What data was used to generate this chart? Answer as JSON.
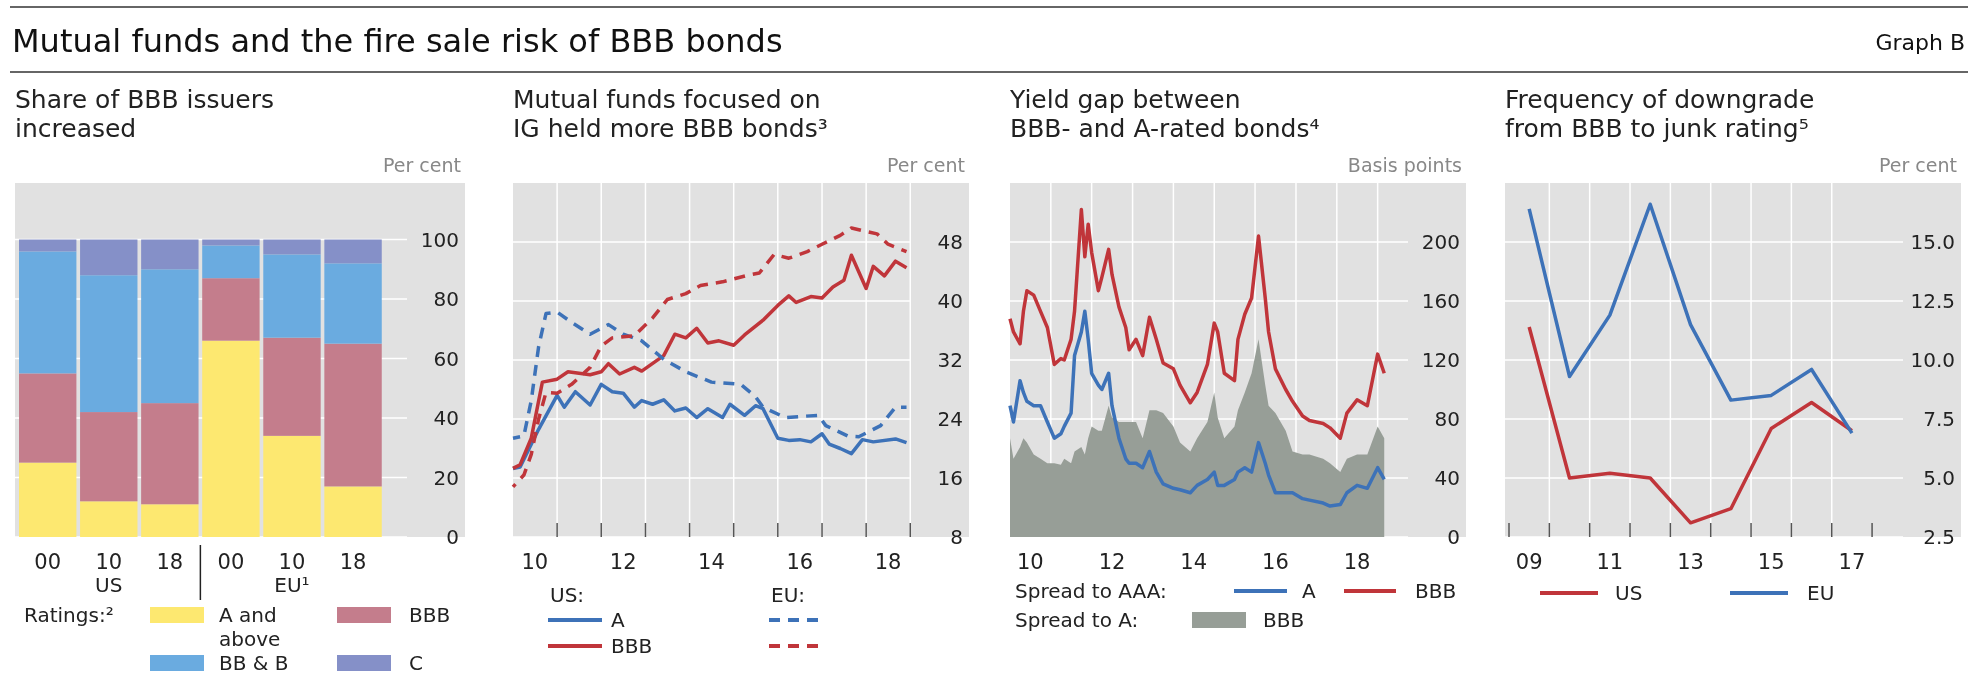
{
  "chart_data": [
    {
      "type": "other",
      "title": "Mutual funds and the fire sale risk of BBB bonds",
      "annotations": [
        "Graph B"
      ]
    },
    {
      "type": "bar",
      "title": "Share of BBB issuers\nincreased",
      "ylabel": "Per cent",
      "categories": [
        "00",
        "10",
        "18",
        "00",
        "10",
        "18"
      ],
      "annotations": [
        "US",
        "EU¹"
      ],
      "stacked": true,
      "ylim": [
        0,
        119
      ],
      "yticks": [
        0,
        20,
        40,
        60,
        80,
        100
      ],
      "grid": "y",
      "legend": "bottom",
      "legend_title": "Ratings:²",
      "series": [
        {
          "name": "A and\nabove",
          "color": "#fde870",
          "values": [
            25,
            12,
            11,
            66,
            34,
            17
          ]
        },
        {
          "name": "BBB",
          "color": "#c47d8c",
          "values": [
            30,
            30,
            34,
            21,
            33,
            48
          ]
        },
        {
          "name": "BB & B",
          "color": "#6aabe0",
          "values": [
            41,
            46,
            45,
            11,
            28,
            27
          ]
        },
        {
          "name": "C",
          "color": "#8590c8",
          "values": [
            4,
            12,
            10,
            2,
            5,
            8
          ]
        }
      ]
    },
    {
      "type": "line",
      "title": "Mutual funds focused on\nIG held more BBB bonds³",
      "ylabel": "Per cent",
      "xlim": [
        "2010-01",
        "2020-05"
      ],
      "xticks": [
        {
          "value": "2010-07",
          "label": "10"
        },
        {
          "value": "2011-01",
          "label": null
        },
        {
          "value": "2012-01",
          "label": null
        },
        {
          "value": "2012-07",
          "label": "12"
        },
        {
          "value": "2013-01",
          "label": null
        },
        {
          "value": "2014-01",
          "label": null
        },
        {
          "value": "2014-07",
          "label": "14"
        },
        {
          "value": "2015-01",
          "label": null
        },
        {
          "value": "2016-01",
          "label": null
        },
        {
          "value": "2016-07",
          "label": "16"
        },
        {
          "value": "2017-01",
          "label": null
        },
        {
          "value": "2018-01",
          "label": null
        },
        {
          "value": "2018-07",
          "label": "18"
        },
        {
          "value": "2019-01",
          "label": null
        }
      ],
      "ylim": [
        8,
        56
      ],
      "yticks": [
        8,
        16,
        24,
        32,
        40,
        48
      ],
      "grid": true,
      "legend": "bottom",
      "annotations": [
        "US:",
        "EU:"
      ],
      "series": [
        {
          "name": "A",
          "color": "#3d72b8",
          "line_style": "solid",
          "x": [
            "2010-01",
            "2010-03",
            "2010-08",
            "2011-01",
            "2011-03",
            "2011-06",
            "2011-10",
            "2012-01",
            "2012-04",
            "2012-07",
            "2012-10",
            "2012-12",
            "2013-03",
            "2013-06",
            "2013-09",
            "2013-12",
            "2014-03",
            "2014-06",
            "2014-10",
            "2014-12",
            "2015-04",
            "2015-07",
            "2015-09",
            "2016-01",
            "2016-04",
            "2016-07",
            "2016-10",
            "2017-01",
            "2017-03",
            "2017-06",
            "2017-09",
            "2017-12",
            "2018-03",
            "2018-09",
            "2018-12"
          ],
          "values": [
            17.3,
            17.5,
            22.6,
            27.2,
            25.6,
            27.7,
            25.9,
            28.7,
            27.7,
            27.5,
            25.6,
            26.5,
            26,
            26.6,
            25.1,
            25.5,
            24.2,
            25.4,
            24.2,
            26,
            24.5,
            25.8,
            25.4,
            21.4,
            21.1,
            21.2,
            20.9,
            22,
            20.6,
            20,
            19.3,
            21.2,
            20.9,
            21.3,
            20.8
          ]
        },
        {
          "name": "BBB",
          "color": "#c0353a",
          "line_style": "solid",
          "x": [
            "2010-01",
            "2010-03",
            "2010-06",
            "2010-09",
            "2011-01",
            "2011-04",
            "2011-10",
            "2012-01",
            "2012-03",
            "2012-06",
            "2012-10",
            "2012-12",
            "2013-06",
            "2013-09",
            "2013-12",
            "2014-03",
            "2014-06",
            "2014-09",
            "2015-01",
            "2015-04",
            "2015-09",
            "2016-01",
            "2016-04",
            "2016-06",
            "2016-10",
            "2017-01",
            "2017-04",
            "2017-07",
            "2017-09",
            "2018-01",
            "2018-03",
            "2018-06",
            "2018-09",
            "2018-12"
          ],
          "values": [
            17.3,
            17.8,
            21.4,
            29.0,
            29.4,
            30.4,
            30.0,
            30.4,
            31.5,
            30.1,
            31.0,
            30.5,
            32.6,
            35.5,
            35.0,
            36.3,
            34.3,
            34.6,
            34.0,
            35.4,
            37.4,
            39.4,
            40.7,
            39.8,
            40.6,
            40.4,
            41.9,
            42.8,
            46.2,
            41.7,
            44.7,
            43.4,
            45.4,
            44.5
          ]
        },
        {
          "color": "#3d72b8",
          "line_style": "dashed",
          "x": [
            "2010-01",
            "2010-04",
            "2010-06",
            "2010-08",
            "2010-10",
            "2011-01",
            "2011-05",
            "2011-10",
            "2012-03",
            "2012-07",
            "2012-12",
            "2013-06",
            "2013-12",
            "2014-07",
            "2015-03",
            "2015-07",
            "2015-09",
            "2016-03",
            "2016-12",
            "2017-02",
            "2017-08",
            "2017-11",
            "2018-05",
            "2018-09",
            "2018-12"
          ],
          "values": [
            21.4,
            21.7,
            26.5,
            33.8,
            38.3,
            38.5,
            37.1,
            35.5,
            36.8,
            35.5,
            34.6,
            32.1,
            30.4,
            29.0,
            28.7,
            27.0,
            25.6,
            24.2,
            24.5,
            23.1,
            21.7,
            21.6,
            23.1,
            25.6,
            25.6
          ]
        },
        {
          "color": "#c0353a",
          "line_style": "dashed",
          "x": [
            "2010-01",
            "2010-04",
            "2010-06",
            "2010-08",
            "2010-10",
            "2011-01",
            "2011-05",
            "2011-10",
            "2012-01",
            "2012-04",
            "2012-10",
            "2013-03",
            "2013-07",
            "2013-12",
            "2014-04",
            "2014-10",
            "2015-05",
            "2015-08",
            "2015-12",
            "2016-04",
            "2016-09",
            "2017-01",
            "2017-06",
            "2017-09",
            "2018-04",
            "2018-07",
            "2018-12"
          ],
          "values": [
            14.8,
            16.4,
            19.2,
            24.0,
            27.6,
            27.5,
            28.7,
            31.0,
            33.9,
            35.0,
            35.3,
            37.7,
            40.2,
            41.0,
            42.1,
            42.6,
            43.5,
            43.8,
            46.3,
            45.8,
            46.7,
            47.7,
            48.9,
            49.9,
            49.1,
            47.7,
            46.7
          ]
        }
      ]
    },
    {
      "type": "line",
      "title": "Yield gap between\nBBB- and A-rated bonds⁴",
      "ylabel": "Basis points",
      "xlim": [
        "2010-01",
        "2021-03"
      ],
      "xticks": [
        {
          "value": "2010-07",
          "label": "10"
        },
        {
          "value": "2011-01",
          "label": null
        },
        {
          "value": "2012-01",
          "label": null
        },
        {
          "value": "2012-07",
          "label": "12"
        },
        {
          "value": "2013-01",
          "label": null
        },
        {
          "value": "2014-01",
          "label": null
        },
        {
          "value": "2014-07",
          "label": "14"
        },
        {
          "value": "2015-01",
          "label": null
        },
        {
          "value": "2016-01",
          "label": null
        },
        {
          "value": "2016-07",
          "label": "16"
        },
        {
          "value": "2017-01",
          "label": null
        },
        {
          "value": "2018-01",
          "label": null
        },
        {
          "value": "2018-07",
          "label": "18"
        },
        {
          "value": "2019-01",
          "label": null
        }
      ],
      "ylim": [
        0,
        240
      ],
      "yticks": [
        0,
        40,
        80,
        120,
        160,
        200
      ],
      "grid": true,
      "legend": "bottom",
      "annotations": [
        "Spread to AAA:",
        "Spread to A:"
      ],
      "x": [
        "2010-01",
        "2010-02",
        "2010-04",
        "2010-05",
        "2010-06",
        "2010-08",
        "2010-10",
        "2010-12",
        "2011-02",
        "2011-04",
        "2011-05",
        "2011-07",
        "2011-08",
        "2011-10",
        "2011-11",
        "2011-12",
        "2012-01",
        "2012-03",
        "2012-04",
        "2012-06",
        "2012-07",
        "2012-09",
        "2012-11",
        "2012-12",
        "2013-02",
        "2013-04",
        "2013-06",
        "2013-08",
        "2013-10",
        "2014-01",
        "2014-03",
        "2014-06",
        "2014-08",
        "2014-11",
        "2015-01",
        "2015-02",
        "2015-04",
        "2015-07",
        "2015-08",
        "2015-10",
        "2015-12",
        "2016-02",
        "2016-04",
        "2016-05",
        "2016-07",
        "2016-10",
        "2016-12",
        "2017-03",
        "2017-05",
        "2017-09",
        "2017-11",
        "2018-02",
        "2018-04",
        "2018-07",
        "2018-10",
        "2019-01",
        "2019-03"
      ],
      "series": [
        {
          "name": "A",
          "color": "#3d72b8",
          "values": [
            89,
            78,
            106,
            98,
            92,
            89,
            89,
            78,
            67,
            70,
            75,
            84,
            123,
            139,
            153,
            134,
            111,
            103,
            100,
            111,
            89,
            67,
            53,
            50,
            50,
            47,
            58,
            44,
            36,
            33,
            32,
            30,
            35,
            39,
            44,
            35,
            35,
            39,
            44,
            47,
            44,
            64,
            50,
            42,
            30,
            30,
            30,
            26,
            25,
            23,
            21,
            22,
            30,
            35,
            33,
            47,
            39
          ]
        },
        {
          "name": "BBB",
          "color": "#c0353a",
          "values": [
            148,
            139,
            131,
            153,
            167,
            164,
            153,
            142,
            117,
            121,
            120,
            134,
            153,
            222,
            190,
            212,
            193,
            167,
            176,
            195,
            178,
            156,
            142,
            127,
            134,
            123,
            149,
            134,
            118,
            114,
            103,
            91,
            98,
            117,
            145,
            139,
            111,
            106,
            134,
            151,
            162,
            204,
            162,
            139,
            114,
            100,
            92,
            82,
            79,
            77,
            74,
            67,
            84,
            93,
            89,
            124,
            111
          ]
        },
        {
          "name": "BBB",
          "type": "area",
          "color": "#979e97",
          "values": [
            67,
            53,
            61,
            67,
            64,
            56,
            53,
            50,
            50,
            49,
            53,
            50,
            58,
            61,
            56,
            67,
            75,
            72,
            72,
            89,
            81,
            78,
            78,
            78,
            78,
            67,
            86,
            86,
            84,
            75,
            64,
            58,
            67,
            78,
            98,
            81,
            67,
            75,
            86,
            98,
            111,
            134,
            103,
            89,
            84,
            72,
            58,
            56,
            56,
            53,
            50,
            44,
            53,
            56,
            56,
            75,
            67
          ]
        }
      ]
    },
    {
      "type": "line",
      "title": "Frequency of downgrade\nfrom BBB to junk rating⁵",
      "ylabel": "Per cent",
      "categories": [
        "09",
        null,
        "11",
        null,
        "13",
        null,
        "15",
        null,
        "17"
      ],
      "ylim": [
        2.5,
        17.5
      ],
      "yticks": [
        2.5,
        {
          "value": 5,
          "label": "5.0"
        },
        7.5,
        {
          "value": 10,
          "label": "10.0"
        },
        12.5,
        {
          "value": 15,
          "label": "15.0"
        }
      ],
      "grid": true,
      "legend": "bottom",
      "series": [
        {
          "name": "US",
          "color": "#c0353a",
          "values": [
            11.4,
            5.0,
            5.2,
            5.0,
            3.1,
            3.7,
            7.1,
            8.2,
            7.0
          ]
        },
        {
          "name": "EU",
          "color": "#3d72b8",
          "values": [
            16.4,
            9.3,
            11.9,
            16.6,
            11.5,
            8.3,
            8.5,
            9.6,
            6.9
          ]
        }
      ]
    }
  ]
}
